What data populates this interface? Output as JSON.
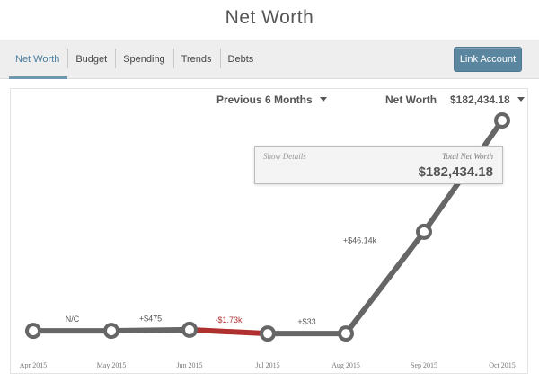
{
  "page": {
    "title": "Net Worth"
  },
  "tabs": [
    {
      "label": "Net Worth",
      "active": true
    },
    {
      "label": "Budget",
      "active": false
    },
    {
      "label": "Spending",
      "active": false
    },
    {
      "label": "Trends",
      "active": false
    },
    {
      "label": "Debts",
      "active": false
    }
  ],
  "link_account_label": "Link Account",
  "controls": {
    "range_label": "Previous 6 Months",
    "net_worth_label": "Net Worth",
    "net_worth_value": "$182,434.18"
  },
  "tooltip": {
    "show_details_label": "Show Details",
    "total_label": "Total Net Worth",
    "total_value": "$182,434.18"
  },
  "colors": {
    "line": "#666666",
    "negative": "#b03030",
    "accent": "#5b86a0"
  },
  "chart_data": {
    "type": "line",
    "x": [
      "Apr 2015",
      "May 2015",
      "Jun 2015",
      "Jul 2015",
      "Aug 2015",
      "Sep 2015",
      "Oct 2015"
    ],
    "values": [
      87000,
      87000,
      87475,
      85745,
      85778,
      131918,
      182434.18
    ],
    "change_labels": [
      "N/C",
      "+$475",
      "-$1.73k",
      "+$33",
      "+$46.14k",
      ""
    ],
    "change_negative": [
      false,
      false,
      true,
      false,
      false,
      false
    ],
    "grid": false,
    "legend": "none"
  }
}
